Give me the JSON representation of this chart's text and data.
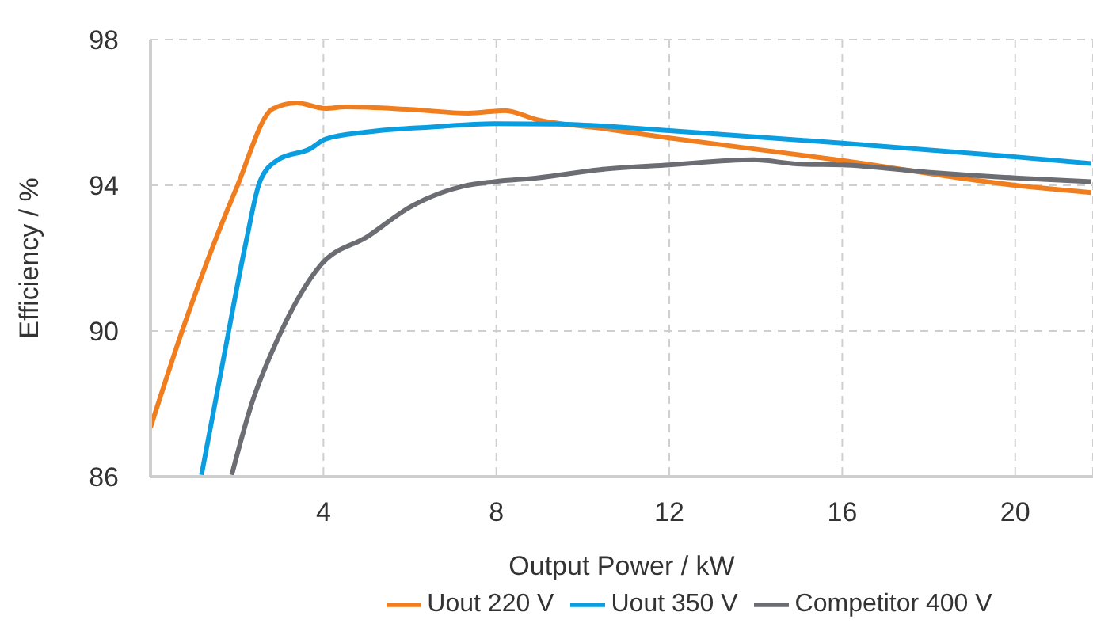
{
  "chart_data": {
    "type": "line",
    "xlabel": "Output Power / kW",
    "ylabel": "Efficiency / %",
    "xlim": [
      0,
      21.8
    ],
    "xticks": [
      4,
      8,
      12,
      16,
      20
    ],
    "ylim": [
      86,
      98
    ],
    "yticks": [
      86,
      90,
      94,
      98
    ],
    "grid": true,
    "legend": "bottom",
    "marker": "none",
    "line_style": "solid",
    "series": [
      {
        "name": "Uout 220 V",
        "color": "#f07d1e",
        "x": [
          0,
          0.76,
          1.98,
          2.83,
          3.38,
          4.05,
          4.52,
          6.0,
          7.35,
          8.2,
          8.94,
          10.4,
          12,
          16,
          20,
          21.76
        ],
        "values": [
          87.35,
          90.1,
          93.9,
          96.1,
          96.26,
          96.11,
          96.15,
          96.08,
          95.98,
          96.05,
          95.8,
          95.57,
          95.3,
          94.68,
          94.0,
          93.8
        ]
      },
      {
        "name": "Uout 350 V",
        "color": "#0a9ee0",
        "x": [
          1.18,
          1.73,
          2.22,
          2.53,
          2.95,
          3.69,
          4.05,
          5.0,
          6.5,
          7.96,
          9.4,
          12,
          16,
          20,
          21.76
        ],
        "values": [
          86.05,
          89.5,
          92.5,
          94.1,
          94.7,
          95.0,
          95.27,
          95.46,
          95.6,
          95.69,
          95.68,
          95.5,
          95.16,
          94.78,
          94.6
        ]
      },
      {
        "name": "Competitor 400 V",
        "color": "#6b6d72",
        "x": [
          1.88,
          2.34,
          2.95,
          3.93,
          5.03,
          6.0,
          7.22,
          7.96,
          8.94,
          10.4,
          12,
          13.94,
          15.04,
          16,
          17.97,
          20,
          21.76
        ],
        "values": [
          86.05,
          88.0,
          89.8,
          91.8,
          92.6,
          93.4,
          93.97,
          94.1,
          94.2,
          94.43,
          94.56,
          94.7,
          94.58,
          94.56,
          94.36,
          94.2,
          94.1
        ]
      }
    ]
  }
}
